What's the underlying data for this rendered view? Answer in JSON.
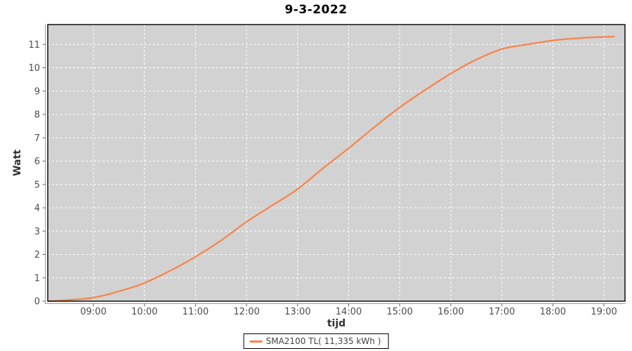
{
  "chart_data": {
    "type": "line",
    "title": "9-3-2022",
    "xlabel": "tijd",
    "ylabel": "Watt",
    "xlim_hours": [
      8.106,
      19.412
    ],
    "ylim": [
      0,
      11.85
    ],
    "grid": "white-dashed",
    "legend_position": "bottom-center",
    "x_ticks": [
      {
        "hour": 9,
        "label": "09:00"
      },
      {
        "hour": 10,
        "label": "10:00"
      },
      {
        "hour": 11,
        "label": "11:00"
      },
      {
        "hour": 12,
        "label": "12:00"
      },
      {
        "hour": 13,
        "label": "13:00"
      },
      {
        "hour": 14,
        "label": "14:00"
      },
      {
        "hour": 15,
        "label": "15:00"
      },
      {
        "hour": 16,
        "label": "16:00"
      },
      {
        "hour": 17,
        "label": "17:00"
      },
      {
        "hour": 18,
        "label": "18:00"
      },
      {
        "hour": 19,
        "label": "19:00"
      }
    ],
    "y_ticks": [
      {
        "value": 0,
        "label": "0"
      },
      {
        "value": 1,
        "label": "1"
      },
      {
        "value": 2,
        "label": "2"
      },
      {
        "value": 3,
        "label": "3"
      },
      {
        "value": 4,
        "label": "4"
      },
      {
        "value": 5,
        "label": "5"
      },
      {
        "value": 6,
        "label": "6"
      },
      {
        "value": 7,
        "label": "7"
      },
      {
        "value": 8,
        "label": "8"
      },
      {
        "value": 9,
        "label": "9"
      },
      {
        "value": 10,
        "label": "10"
      },
      {
        "value": 11,
        "label": "11"
      }
    ],
    "series": [
      {
        "name": "SMA2100 TL( 11,335 kWh )",
        "color": "#F98346",
        "points": [
          [
            8.11,
            0.0
          ],
          [
            8.5,
            0.05
          ],
          [
            9.0,
            0.15
          ],
          [
            9.5,
            0.42
          ],
          [
            10.0,
            0.78
          ],
          [
            10.5,
            1.3
          ],
          [
            11.0,
            1.9
          ],
          [
            11.5,
            2.6
          ],
          [
            12.0,
            3.4
          ],
          [
            12.5,
            4.1
          ],
          [
            13.0,
            4.8
          ],
          [
            13.5,
            5.7
          ],
          [
            14.0,
            6.55
          ],
          [
            14.5,
            7.45
          ],
          [
            15.0,
            8.3
          ],
          [
            15.5,
            9.05
          ],
          [
            16.0,
            9.75
          ],
          [
            16.5,
            10.35
          ],
          [
            17.0,
            10.8
          ],
          [
            17.5,
            11.0
          ],
          [
            18.0,
            11.17
          ],
          [
            18.5,
            11.27
          ],
          [
            19.0,
            11.32
          ],
          [
            19.2,
            11.335
          ]
        ]
      }
    ],
    "colors": {
      "plot_background": "#D2D2D2",
      "grid": "#FFFFFF",
      "plot_border": "#000000",
      "axis_line": "#999999",
      "tick_mark": "#666666",
      "tick_text": "#4D4D4D"
    }
  }
}
